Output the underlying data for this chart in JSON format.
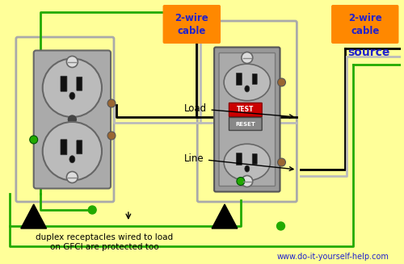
{
  "bg_color": "#FFFF99",
  "website": "www.do-it-yourself-help.com",
  "wire_black": "#000000",
  "wire_white": "#BBBBBB",
  "wire_green": "#22AA00",
  "outlet_gray": "#AAAAAA",
  "outlet_face": "#BBBBBB",
  "outlet_border": "#666666",
  "screw_brown": "#996633",
  "orange_label": "#FF8800",
  "blue_text": "#2222CC",
  "label_load": "Load",
  "label_line": "Line",
  "label_cable1": "2-wire\ncable",
  "label_cable2": "2-wire\ncable",
  "label_source": "source",
  "label_bottom": "duplex receptacles wired to load\non GFCI are protected too",
  "test_color": "#CC0000",
  "reset_color": "#888888",
  "box_outline": "#999999",
  "box_fill": "#CCCCCC",
  "screw_white": "#DDDDDD",
  "green_screw": "#22AA00"
}
